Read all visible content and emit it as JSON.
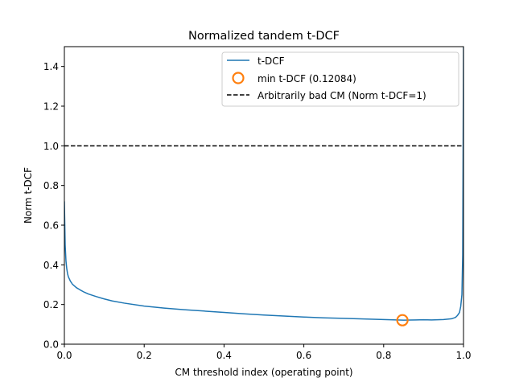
{
  "chart_data": {
    "type": "line",
    "title": "Normalized tandem t-DCF",
    "xlabel": "CM threshold index (operating point)",
    "ylabel": "Norm t-DCF",
    "xlim": [
      0.0,
      1.0
    ],
    "ylim": [
      0.0,
      1.5
    ],
    "xticks": [
      "0.0",
      "0.2",
      "0.4",
      "0.6",
      "0.8",
      "1.0"
    ],
    "yticks": [
      "0.0",
      "0.2",
      "0.4",
      "0.6",
      "0.8",
      "1.0",
      "1.2",
      "1.4"
    ],
    "grid": false,
    "legend_position": "top-right",
    "series": [
      {
        "name": "t-DCF",
        "style": "solid",
        "color": "#1f77b4",
        "x": [
          0.0,
          0.002,
          0.004,
          0.006,
          0.008,
          0.01,
          0.015,
          0.02,
          0.03,
          0.04,
          0.05,
          0.06,
          0.08,
          0.1,
          0.12,
          0.15,
          0.2,
          0.25,
          0.3,
          0.35,
          0.4,
          0.45,
          0.5,
          0.55,
          0.6,
          0.65,
          0.7,
          0.75,
          0.8,
          0.85,
          0.88,
          0.9,
          0.92,
          0.95,
          0.97,
          0.98,
          0.985,
          0.99,
          0.993,
          0.996,
          0.998,
          1.0
        ],
        "y": [
          0.72,
          0.5,
          0.42,
          0.38,
          0.355,
          0.34,
          0.318,
          0.303,
          0.285,
          0.273,
          0.262,
          0.253,
          0.24,
          0.228,
          0.218,
          0.207,
          0.192,
          0.182,
          0.174,
          0.167,
          0.16,
          0.153,
          0.147,
          0.142,
          0.137,
          0.133,
          0.13,
          0.127,
          0.124,
          0.121,
          0.122,
          0.123,
          0.122,
          0.124,
          0.128,
          0.135,
          0.145,
          0.16,
          0.19,
          0.25,
          0.45,
          1.5
        ]
      },
      {
        "name": "min t-DCF (0.12084)",
        "style": "marker",
        "color": "#ff7f0e",
        "x": [
          0.847
        ],
        "y": [
          0.12084
        ]
      },
      {
        "name": "Arbitrarily bad CM (Norm t-DCF=1)",
        "style": "dashed",
        "color": "#000000",
        "x": [
          0.0,
          1.0
        ],
        "y": [
          1.0,
          1.0
        ]
      }
    ]
  }
}
